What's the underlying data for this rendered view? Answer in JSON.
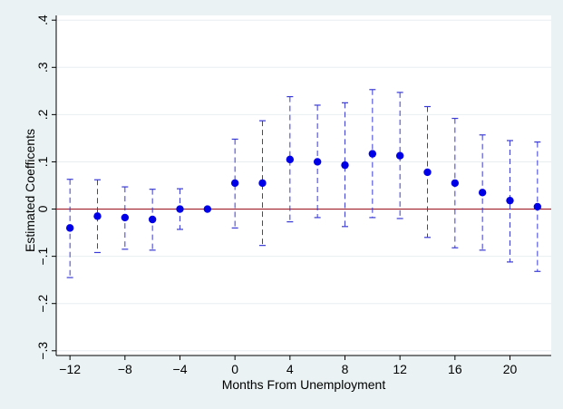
{
  "chart_data": {
    "type": "scatter",
    "title": "",
    "xlabel": "Months From Unemployment",
    "ylabel": "Estimated Coefficents",
    "xlim": [
      -13,
      23
    ],
    "ylim": [
      -0.31,
      0.41
    ],
    "xticks": [
      -12,
      -8,
      -4,
      0,
      4,
      8,
      12,
      16,
      20
    ],
    "xtick_labels": [
      "−12",
      "−8",
      "−4",
      "0",
      "4",
      "8",
      "12",
      "16",
      "20"
    ],
    "yticks": [
      -0.3,
      -0.2,
      -0.1,
      0,
      0.1,
      0.2,
      0.3,
      0.4
    ],
    "ytick_labels": [
      "−.3",
      "−.2",
      "−.1",
      "0",
      ".1",
      ".2",
      ".3",
      ".4"
    ],
    "grid": true,
    "reference_line": 0,
    "colors": {
      "point": "#0000e6",
      "ci": "#3a3ad6",
      "reference": "#a01d2a",
      "grid": "#e8eef0",
      "background": "#eaf2f3",
      "plot_background": "#ffffff"
    },
    "points": [
      {
        "x": -12,
        "y": -0.04,
        "lo": -0.145,
        "hi": 0.063
      },
      {
        "x": -10,
        "y": -0.015,
        "lo": -0.092,
        "hi": 0.062
      },
      {
        "x": -8,
        "y": -0.018,
        "lo": -0.085,
        "hi": 0.047
      },
      {
        "x": -6,
        "y": -0.022,
        "lo": -0.087,
        "hi": 0.042
      },
      {
        "x": -4,
        "y": 0.0,
        "lo": -0.043,
        "hi": 0.043
      },
      {
        "x": -2,
        "y": 0.0,
        "lo": 0.0,
        "hi": 0.0
      },
      {
        "x": 0,
        "y": 0.055,
        "lo": -0.04,
        "hi": 0.148
      },
      {
        "x": 2,
        "y": 0.055,
        "lo": -0.077,
        "hi": 0.187
      },
      {
        "x": 4,
        "y": 0.105,
        "lo": -0.027,
        "hi": 0.238
      },
      {
        "x": 6,
        "y": 0.1,
        "lo": -0.018,
        "hi": 0.22
      },
      {
        "x": 8,
        "y": 0.093,
        "lo": -0.037,
        "hi": 0.225
      },
      {
        "x": 10,
        "y": 0.117,
        "lo": -0.018,
        "hi": 0.253
      },
      {
        "x": 12,
        "y": 0.113,
        "lo": -0.02,
        "hi": 0.247
      },
      {
        "x": 14,
        "y": 0.078,
        "lo": -0.06,
        "hi": 0.217
      },
      {
        "x": 16,
        "y": 0.055,
        "lo": -0.082,
        "hi": 0.192
      },
      {
        "x": 18,
        "y": 0.035,
        "lo": -0.087,
        "hi": 0.157
      },
      {
        "x": 20,
        "y": 0.018,
        "lo": -0.112,
        "hi": 0.145
      },
      {
        "x": 22,
        "y": 0.005,
        "lo": -0.132,
        "hi": 0.142
      }
    ]
  }
}
